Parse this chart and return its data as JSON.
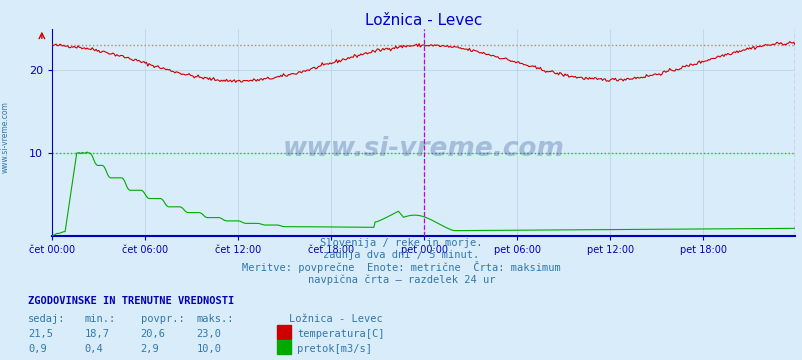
{
  "title": "Ložnica - Levec",
  "title_color": "#0000cc",
  "bg_color": "#d8ecfa",
  "plot_bg_color": "#d8ecfa",
  "x_tick_labels": [
    "čet 00:00",
    "čet 06:00",
    "čet 12:00",
    "čet 18:00",
    "pet 00:00",
    "pet 06:00",
    "pet 12:00",
    "pet 18:00"
  ],
  "x_tick_positions": [
    0,
    72,
    144,
    216,
    288,
    360,
    432,
    504
  ],
  "total_points": 576,
  "y_min": 0,
  "y_max": 25,
  "y_ticks": [
    10,
    20
  ],
  "temp_max_line": 23.0,
  "flow_max_line": 10.0,
  "temp_color": "#cc0000",
  "flow_color": "#00aa00",
  "max_line_color_temp": "#ff6666",
  "max_line_color_flow": "#00dd00",
  "vertical_line_color": "#cc00cc",
  "grid_color": "#aaccdd",
  "axis_color": "#0000bb",
  "text_color": "#3377aa",
  "subtitle_lines": [
    "Slovenija / reke in morje.",
    "zadnja dva dni / 5 minut.",
    "Meritve: povprečne  Enote: metrične  Črta: maksimum",
    "navpična črta – razdelek 24 ur"
  ],
  "legend_title": "ZGODOVINSKE IN TRENUTNE VREDNOSTI",
  "legend_headers": [
    "sedaj:",
    "min.:",
    "povpr.:",
    "maks.:"
  ],
  "temp_stat_values": [
    "21,5",
    "18,7",
    "20,6",
    "23,0"
  ],
  "flow_stat_values": [
    "0,9",
    "0,4",
    "2,9",
    "10,0"
  ],
  "legend_station": "Ložnica - Levec",
  "legend_temp_label": "temperatura[C]",
  "legend_flow_label": "pretok[m3/s]",
  "watermark": "www.si-vreme.com",
  "watermark_color": "#1a4488",
  "left_label": "www.si-vreme.com"
}
